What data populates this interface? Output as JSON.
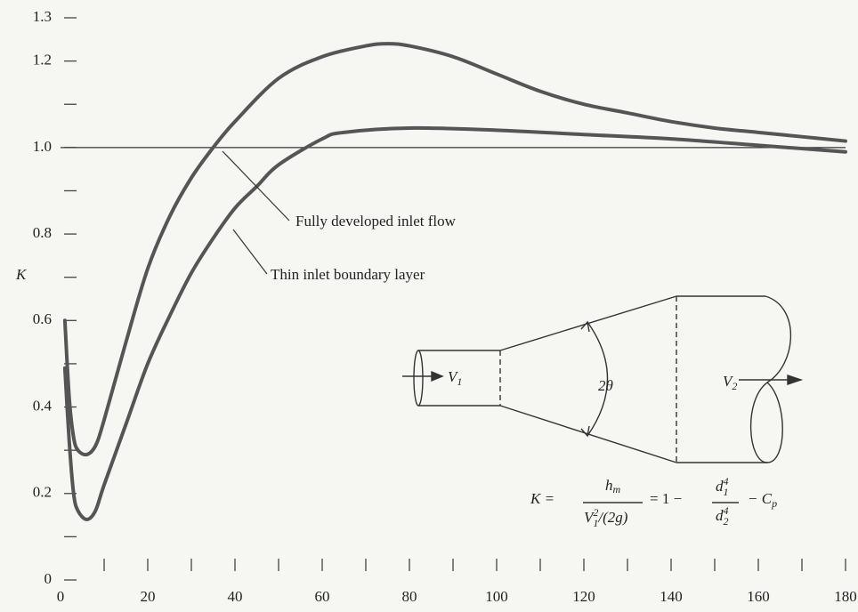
{
  "chart_data": {
    "type": "line",
    "y_label": "K",
    "xlim": [
      0,
      180
    ],
    "ylim": [
      0,
      1.3
    ],
    "xticks": [
      0,
      20,
      40,
      60,
      80,
      100,
      120,
      140,
      160,
      180
    ],
    "xminor_ticks": [
      10,
      30,
      50,
      70,
      90,
      110,
      130,
      150,
      170
    ],
    "yticks": [
      0,
      0.2,
      0.4,
      0.6,
      0.8,
      {
        "value": 1,
        "label": "1.0"
      },
      1.2,
      1.3
    ],
    "yminor_ticks": [
      0.1,
      0.3,
      0.5,
      0.7,
      0.9,
      1.1
    ],
    "reference_line": 1,
    "series": [
      {
        "name": "Fully developed inlet flow",
        "color": "#555555",
        "x": [
          1,
          2,
          3,
          4,
          6,
          8,
          10,
          15,
          20,
          25,
          30,
          35,
          40,
          50,
          60,
          70,
          75,
          80,
          90,
          100,
          110,
          120,
          130,
          140,
          150,
          160,
          170,
          180
        ],
        "values": [
          0.6,
          0.42,
          0.33,
          0.3,
          0.29,
          0.31,
          0.37,
          0.55,
          0.72,
          0.84,
          0.93,
          1.0,
          1.06,
          1.16,
          1.21,
          1.235,
          1.24,
          1.235,
          1.21,
          1.17,
          1.13,
          1.1,
          1.08,
          1.06,
          1.045,
          1.035,
          1.025,
          1.015
        ]
      },
      {
        "name": "Thin inlet boundary layer",
        "color": "#555555",
        "x": [
          1,
          2,
          3,
          4,
          6,
          8,
          10,
          15,
          20,
          25,
          30,
          35,
          40,
          45,
          50,
          60,
          65,
          80,
          100,
          120,
          140,
          160,
          180
        ],
        "values": [
          0.49,
          0.32,
          0.2,
          0.16,
          0.14,
          0.16,
          0.22,
          0.36,
          0.5,
          0.61,
          0.71,
          0.79,
          0.86,
          0.91,
          0.96,
          1.02,
          1.035,
          1.045,
          1.04,
          1.03,
          1.02,
          1.005,
          0.99
        ]
      }
    ],
    "diagram": {
      "v1": {
        "main": "V",
        "sub": "1"
      },
      "v2": {
        "main": "V",
        "sub": "2"
      },
      "angle": "2θ",
      "formula": {
        "lhs": "K =",
        "num1": {
          "main": "h",
          "sub": "m"
        },
        "den1": {
          "main": "V",
          "sup": "2",
          "sub": "1",
          "rest": "/(2g)"
        },
        "mid": "= 1 −",
        "num2": {
          "main": "d",
          "sup": "4",
          "sub": "1"
        },
        "den2": {
          "main": "d",
          "sup": "4",
          "sub": "2"
        },
        "tail": {
          "main": "− C",
          "sub": "p"
        }
      }
    }
  }
}
